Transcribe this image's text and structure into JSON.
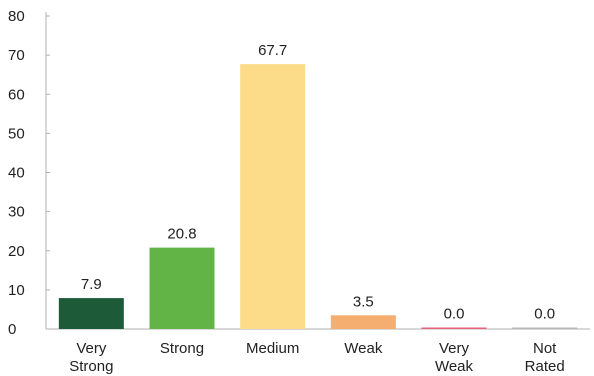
{
  "chart_data": {
    "type": "bar",
    "categories": [
      [
        "Very",
        "Strong"
      ],
      [
        "Strong"
      ],
      [
        "Medium"
      ],
      [
        "Weak"
      ],
      [
        "Very",
        "Weak"
      ],
      [
        "Not",
        "Rated"
      ]
    ],
    "values": [
      7.9,
      20.8,
      67.7,
      3.5,
      0.0,
      0.0
    ],
    "value_labels": [
      "7.9",
      "20.8",
      "67.7",
      "3.5",
      "0.0",
      "0.0"
    ],
    "colors": [
      "#1c5a38",
      "#62b446",
      "#fcdc88",
      "#f5ad70",
      "#e8607a",
      "#b8b8b8"
    ],
    "yticks": [
      "0",
      "10",
      "20",
      "30",
      "40",
      "50",
      "60",
      "70",
      "80"
    ],
    "ylim": [
      0,
      80
    ],
    "title": "",
    "xlabel": "",
    "ylabel": "",
    "grid": false,
    "legend": "none"
  }
}
